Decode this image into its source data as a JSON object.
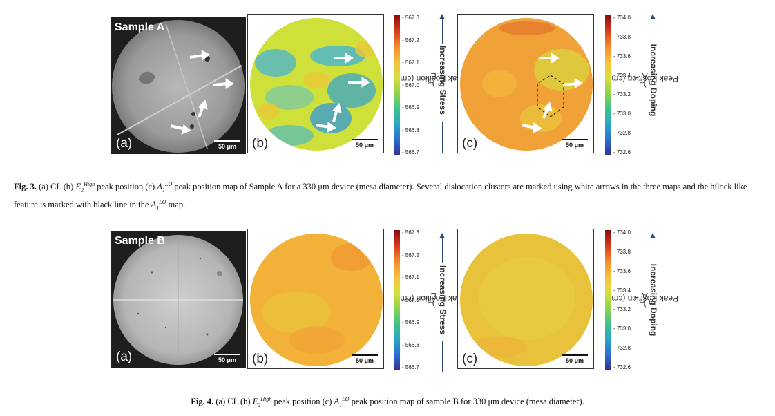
{
  "fig3": {
    "sample_label": "Sample A",
    "panel_a": "(a)",
    "panel_b": "(b)",
    "panel_c": "(c)",
    "scalebar": "50 μm",
    "cbar_e2_ticks": [
      "567.3",
      "567.2",
      "567.1",
      "567.0",
      "566.9",
      "566.8",
      "566.7"
    ],
    "cbar_a1_ticks": [
      "734.0",
      "733.8",
      "733.6",
      "733.4",
      "733.2",
      "733.0",
      "732.8",
      "732.6"
    ],
    "e2_label_pre": "E",
    "e2_label_sub": "2",
    "e2_label_post": " Peak Position (cm",
    "label_sup": "-1",
    "label_close": ")",
    "a1_label_pre": "A",
    "a1_label_sub": "1",
    "a1_label_post": " Peak Position (cm",
    "stress_label": "Increasing Stress",
    "doping_label": "Increasing Doping",
    "caption_bold": "Fig. 3.",
    "caption_t1": " (a) CL (b) ",
    "caption_t2": " peak position (c) ",
    "caption_t3": " peak position map of Sample A for a 330 μm device (mesa diameter). Several dislocation clusters are marked using white arrows in the three maps and the hilock like feature is marked with black line in the ",
    "caption_t4": " map.",
    "math_E": "E",
    "math_E_sub": "2",
    "math_E_sup": "High",
    "math_A": "A",
    "math_A_sub": "1",
    "math_A_sup": "LO"
  },
  "fig4": {
    "sample_label": "Sample B",
    "panel_a": "(a)",
    "panel_b": "(b)",
    "panel_c": "(c)",
    "scalebar": "50 μm",
    "cbar_e2_ticks": [
      "567.3",
      "567.2",
      "567.1",
      "567.0",
      "566.9",
      "566.8",
      "566.7"
    ],
    "cbar_a1_ticks": [
      "734.0",
      "733.8",
      "733.6",
      "733.4",
      "733.2",
      "733.0",
      "732.8",
      "732.6"
    ],
    "caption_bold": "Fig. 4.",
    "caption_t1": " (a) CL (b) ",
    "caption_t2": " peak position (c) ",
    "caption_t3": " peak position map of sample B for 330 μm device (mesa diameter).",
    "math_E": "E",
    "math_E_sub": "2",
    "math_E_sup": "High",
    "math_A": "A",
    "math_A_sub": "1",
    "math_A_sup": "LO"
  },
  "colors": {
    "cbar_gradient": [
      "#8b0a0a",
      "#d83a1e",
      "#f58a2a",
      "#f7c23a",
      "#d8e03a",
      "#8fd24a",
      "#3fc48a",
      "#2aa5c8",
      "#2a6fd0",
      "#3a2a8a"
    ],
    "map_a_base": "#d9d640",
    "map_a_blue": "#4fb6c8",
    "map_a_c_base": "#f0a238",
    "map_b_base": "#f2b23a",
    "map_b_c_base": "#e8c83a",
    "arrow_blue": "#2d4a7a"
  }
}
